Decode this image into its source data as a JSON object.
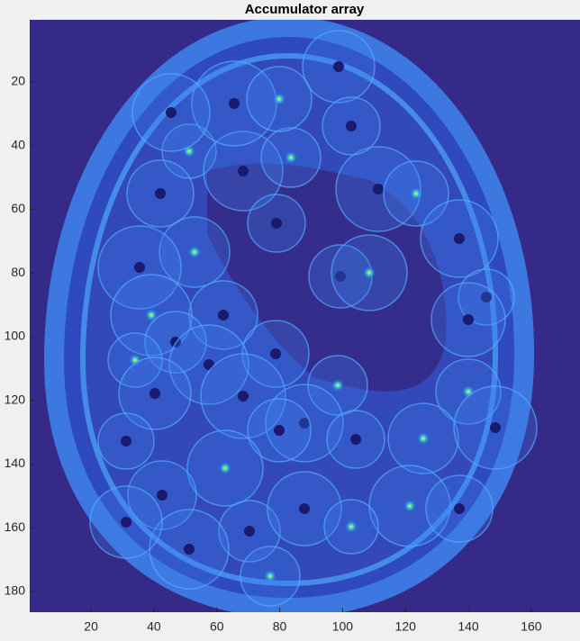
{
  "chart_data": {
    "type": "image",
    "title": "Accumulator array",
    "xlim": [
      0.5,
      175.5
    ],
    "ylim": [
      0.5,
      186.5
    ],
    "xticks": [
      20,
      40,
      60,
      80,
      100,
      120,
      140,
      160
    ],
    "yticks": [
      20,
      40,
      60,
      80,
      100,
      120,
      140,
      160,
      180
    ],
    "y_reversed": true,
    "background_color": "#352a87"
  }
}
